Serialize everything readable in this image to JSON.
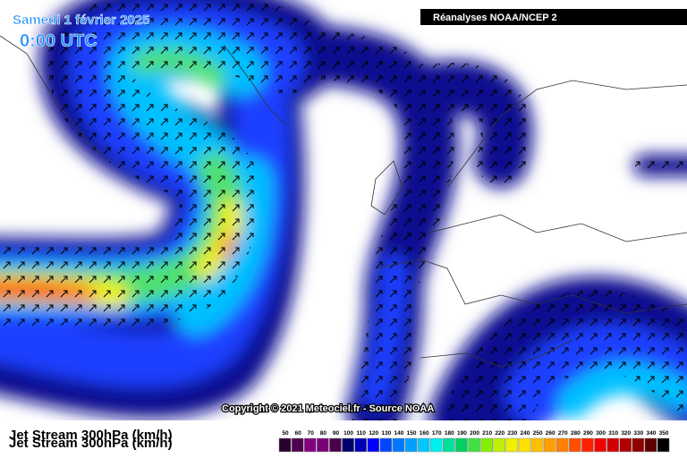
{
  "header": {
    "title": "Samedi 1 février 2025",
    "time": "0:00 UTC",
    "source_box": "Réanalyses NOAA/NCEP 2"
  },
  "copyright": "Copyright © 2021 Meteociel.fr - Source NOAA",
  "legend": {
    "title": "Jet Stream 300hPa (km/h)",
    "labels": [
      50,
      60,
      70,
      80,
      90,
      100,
      110,
      120,
      130,
      140,
      150,
      160,
      170,
      180,
      190,
      200,
      210,
      220,
      230,
      240,
      250,
      260,
      270,
      280,
      290,
      300,
      310,
      320,
      330,
      340,
      350
    ],
    "colors": [
      "#2a0030",
      "#500050",
      "#800080",
      "#7a007a",
      "#4a004a",
      "#00006e",
      "#0000b4",
      "#0000ff",
      "#0046ff",
      "#0078ff",
      "#00a0ff",
      "#00c8ff",
      "#00f0f0",
      "#00e0a0",
      "#00d060",
      "#40e040",
      "#80f000",
      "#c0f000",
      "#f0f000",
      "#ffe000",
      "#ffc000",
      "#ffa000",
      "#ff8000",
      "#ff5000",
      "#ff2000",
      "#f00000",
      "#d00000",
      "#b00000",
      "#900000",
      "#600000",
      "#000000"
    ]
  }
}
